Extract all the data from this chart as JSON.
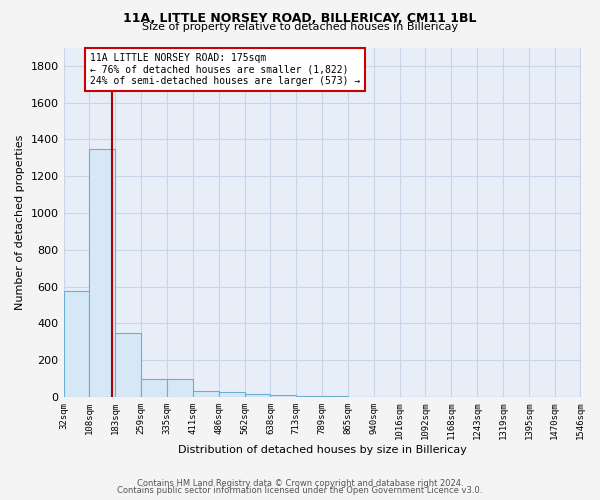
{
  "title1": "11A, LITTLE NORSEY ROAD, BILLERICAY, CM11 1BL",
  "title2": "Size of property relative to detached houses in Billericay",
  "xlabel": "Distribution of detached houses by size in Billericay",
  "ylabel": "Number of detached properties",
  "bin_edges": [
    32,
    108,
    183,
    259,
    335,
    411,
    486,
    562,
    638,
    713,
    789,
    865,
    940,
    1016,
    1092,
    1168,
    1243,
    1319,
    1395,
    1470,
    1546
  ],
  "bar_heights": [
    575,
    1350,
    350,
    95,
    95,
    30,
    25,
    15,
    10,
    5,
    3,
    2,
    2,
    1,
    1,
    1,
    0,
    0,
    0,
    0
  ],
  "bar_color": "#d6e8f5",
  "bar_edge_color": "#6aaed6",
  "red_line_x": 175,
  "annotation_line1": "11A LITTLE NORSEY ROAD: 175sqm",
  "annotation_line2": "← 76% of detached houses are smaller (1,822)",
  "annotation_line3": "24% of semi-detached houses are larger (573) →",
  "annotation_box_color": "#ffffff",
  "annotation_box_edge": "#cc0000",
  "red_line_color": "#aa0000",
  "background_color": "#e8eef8",
  "grid_color": "#c8d4e8",
  "ylim": [
    0,
    1900
  ],
  "yticks": [
    0,
    200,
    400,
    600,
    800,
    1000,
    1200,
    1400,
    1600,
    1800
  ],
  "footer1": "Contains HM Land Registry data © Crown copyright and database right 2024.",
  "footer2": "Contains public sector information licensed under the Open Government Licence v3.0."
}
